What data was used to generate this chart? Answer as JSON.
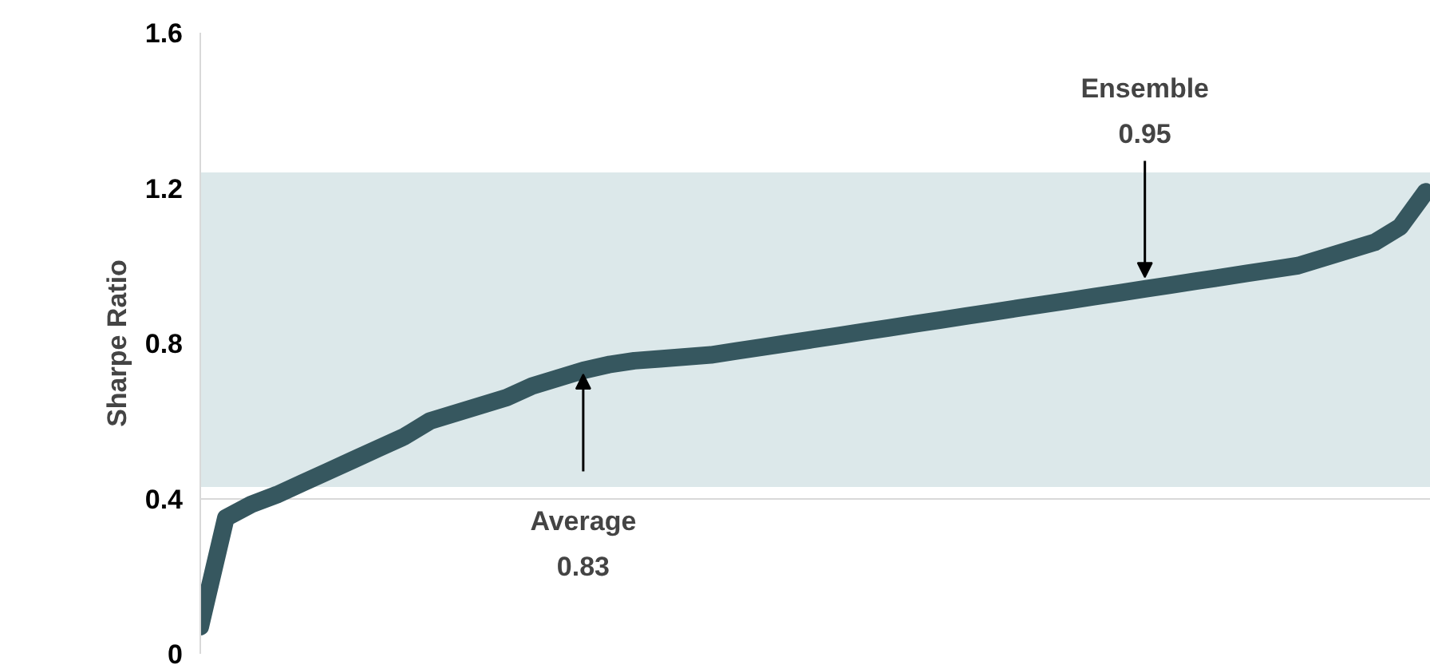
{
  "chart_data": {
    "type": "line",
    "ylabel": "Sharpe Ratio",
    "categories": [
      null,
      null,
      null,
      null,
      null,
      null,
      null,
      null,
      null,
      null,
      null,
      null,
      null,
      null,
      null,
      null,
      null,
      null,
      null,
      null,
      null,
      null,
      null,
      null,
      null,
      null,
      null,
      null,
      null,
      null,
      null,
      null,
      null,
      null,
      null,
      null,
      null,
      null,
      null,
      null,
      null,
      null,
      null,
      null,
      null,
      null,
      null,
      null,
      null
    ],
    "series": [
      {
        "color": "#36575f",
        "values": [
          0.07,
          0.35,
          0.385,
          0.41,
          0.44,
          0.47,
          0.5,
          0.53,
          0.56,
          0.6,
          0.62,
          0.64,
          0.66,
          0.69,
          0.71,
          0.73,
          0.745,
          0.755,
          0.76,
          0.765,
          0.77,
          0.78,
          0.79,
          0.8,
          0.81,
          0.82,
          0.83,
          0.84,
          0.85,
          0.86,
          0.87,
          0.88,
          0.89,
          0.9,
          0.91,
          0.92,
          0.93,
          0.94,
          0.95,
          0.96,
          0.97,
          0.98,
          0.99,
          1.0,
          1.02,
          1.04,
          1.06,
          1.1,
          1.19
        ]
      }
    ],
    "ylim": [
      0,
      1.6
    ],
    "yticks": [
      0,
      0.4,
      0.8,
      1.2,
      1.6
    ],
    "grid": "y",
    "tick_labels": "y",
    "bands": [
      {
        "axis": "y",
        "from": 0.43,
        "to": 1.24,
        "color": "#dce8ea"
      }
    ],
    "annotations": [
      "Average\n0.83",
      "Ensemble\n0.95"
    ]
  }
}
